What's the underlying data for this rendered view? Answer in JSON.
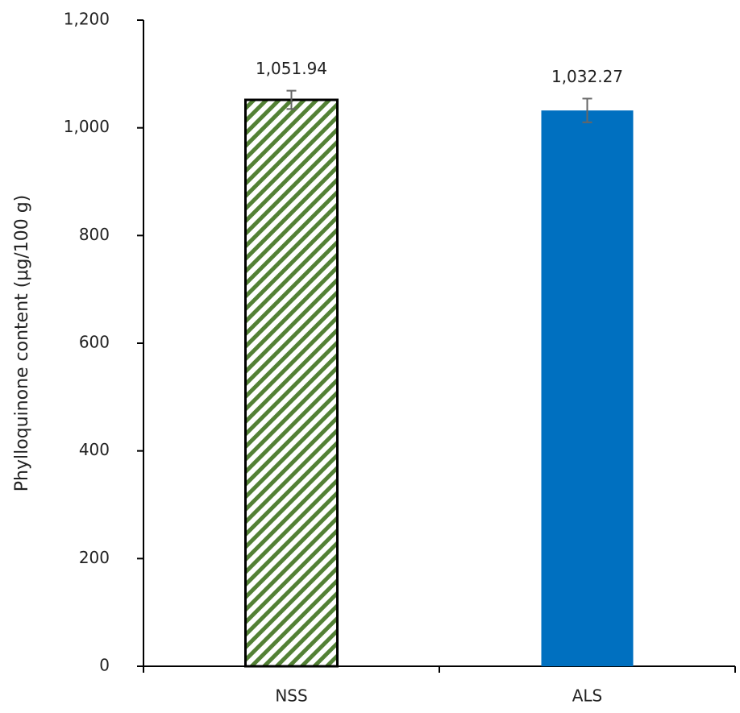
{
  "chart_data": {
    "type": "bar",
    "y_label": "Phylloquinone content (μg/100 g)",
    "categories": [
      "NSS",
      "ALS"
    ],
    "values": [
      1051.94,
      1032.27
    ],
    "value_labels": [
      "1,051.94",
      "1,032.27"
    ],
    "errors": [
      17,
      22
    ],
    "colors": [
      "#538135",
      "#0070c0"
    ],
    "patterns": [
      "hatch",
      "solid"
    ],
    "ylim": [
      0,
      1200
    ],
    "yticks": [
      0,
      200,
      400,
      600,
      800,
      {
        "value": 1000,
        "label": "1,000"
      },
      {
        "value": 1200,
        "label": "1,200"
      }
    ],
    "grid": false
  }
}
